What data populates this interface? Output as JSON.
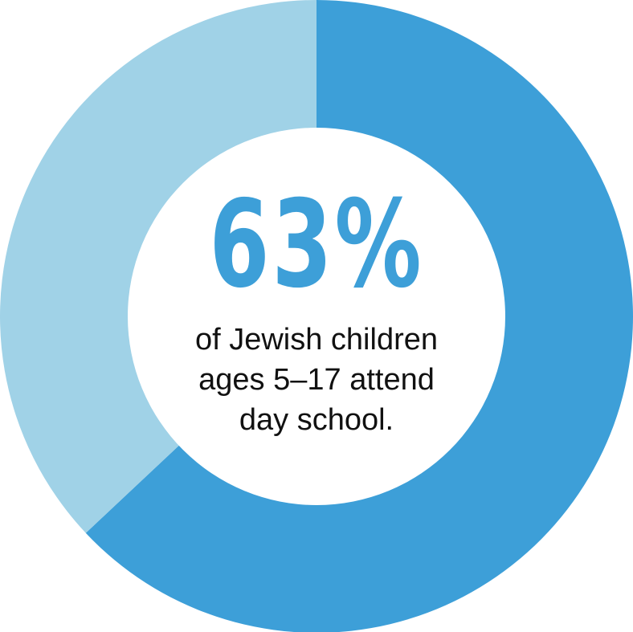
{
  "chart_data": {
    "type": "pie",
    "style": "donut",
    "slices": [
      {
        "label": "",
        "value": 63,
        "color": "#3d9fd8"
      },
      {
        "label": "",
        "value": 37,
        "color": "#a0d2e7"
      }
    ],
    "start": "12 o'clock",
    "direction": "clockwise",
    "center_value": "63%",
    "center_value_color": "#3d9fd8",
    "caption_lines": [
      "of Jewish children",
      "ages 5–17 attend",
      "day school."
    ]
  }
}
